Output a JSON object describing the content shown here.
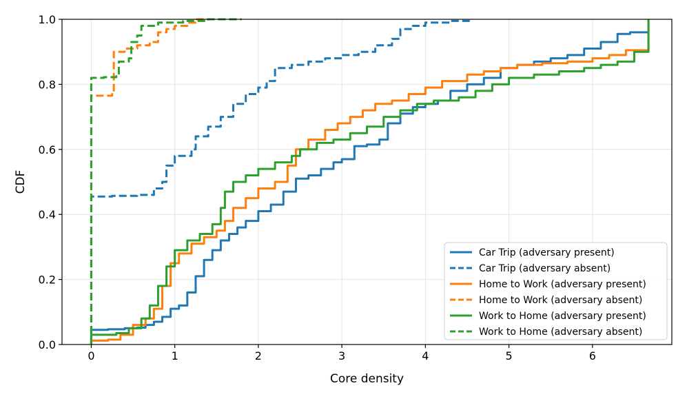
{
  "chart_data": {
    "type": "line",
    "title": "",
    "xlabel": "Core density",
    "ylabel": "CDF",
    "xlim": [
      -0.35,
      6.95
    ],
    "ylim": [
      0.0,
      1.0
    ],
    "xticks": [
      0,
      1,
      2,
      3,
      4,
      5,
      6
    ],
    "xtick_labels": [
      "0",
      "1",
      "2",
      "3",
      "4",
      "5",
      "6"
    ],
    "yticks": [
      0.0,
      0.2,
      0.4,
      0.6,
      0.8,
      1.0
    ],
    "ytick_labels": [
      "0.0",
      "0.2",
      "0.4",
      "0.6",
      "0.8",
      "1.0"
    ],
    "grid": true,
    "legend_position": "lower-right",
    "series": [
      {
        "name": "Car Trip (adversary present)",
        "color": "#1f77b4",
        "style": "solid",
        "points": [
          [
            0,
            0
          ],
          [
            0,
            0.045
          ],
          [
            0.2,
            0.047
          ],
          [
            0.4,
            0.05
          ],
          [
            0.55,
            0.052
          ],
          [
            0.65,
            0.06
          ],
          [
            0.75,
            0.07
          ],
          [
            0.85,
            0.085
          ],
          [
            0.95,
            0.11
          ],
          [
            1.05,
            0.12
          ],
          [
            1.15,
            0.16
          ],
          [
            1.25,
            0.21
          ],
          [
            1.35,
            0.26
          ],
          [
            1.45,
            0.29
          ],
          [
            1.55,
            0.32
          ],
          [
            1.65,
            0.34
          ],
          [
            1.75,
            0.36
          ],
          [
            1.85,
            0.38
          ],
          [
            2.0,
            0.41
          ],
          [
            2.15,
            0.43
          ],
          [
            2.3,
            0.47
          ],
          [
            2.45,
            0.51
          ],
          [
            2.6,
            0.52
          ],
          [
            2.75,
            0.54
          ],
          [
            2.9,
            0.56
          ],
          [
            3.0,
            0.57
          ],
          [
            3.15,
            0.61
          ],
          [
            3.3,
            0.615
          ],
          [
            3.45,
            0.63
          ],
          [
            3.55,
            0.68
          ],
          [
            3.7,
            0.71
          ],
          [
            3.85,
            0.73
          ],
          [
            4.0,
            0.74
          ],
          [
            4.15,
            0.75
          ],
          [
            4.3,
            0.78
          ],
          [
            4.5,
            0.8
          ],
          [
            4.7,
            0.82
          ],
          [
            4.9,
            0.85
          ],
          [
            5.1,
            0.86
          ],
          [
            5.3,
            0.87
          ],
          [
            5.5,
            0.88
          ],
          [
            5.7,
            0.89
          ],
          [
            5.9,
            0.91
          ],
          [
            6.1,
            0.93
          ],
          [
            6.3,
            0.955
          ],
          [
            6.45,
            0.96
          ],
          [
            6.67,
            0.962
          ],
          [
            6.67,
            1.0
          ]
        ]
      },
      {
        "name": "Car Trip (adversary absent)",
        "color": "#1f77b4",
        "style": "dashed",
        "points": [
          [
            0,
            0
          ],
          [
            0,
            0.455
          ],
          [
            0.25,
            0.457
          ],
          [
            0.55,
            0.46
          ],
          [
            0.75,
            0.48
          ],
          [
            0.85,
            0.5
          ],
          [
            0.9,
            0.55
          ],
          [
            1.0,
            0.58
          ],
          [
            1.2,
            0.6
          ],
          [
            1.25,
            0.64
          ],
          [
            1.4,
            0.67
          ],
          [
            1.55,
            0.7
          ],
          [
            1.7,
            0.74
          ],
          [
            1.85,
            0.77
          ],
          [
            2.0,
            0.79
          ],
          [
            2.1,
            0.81
          ],
          [
            2.2,
            0.85
          ],
          [
            2.4,
            0.86
          ],
          [
            2.6,
            0.87
          ],
          [
            2.8,
            0.88
          ],
          [
            3.0,
            0.89
          ],
          [
            3.2,
            0.9
          ],
          [
            3.4,
            0.92
          ],
          [
            3.6,
            0.94
          ],
          [
            3.7,
            0.97
          ],
          [
            3.85,
            0.98
          ],
          [
            4.0,
            0.99
          ],
          [
            4.3,
            0.995
          ],
          [
            4.55,
            1.0
          ]
        ]
      },
      {
        "name": "Home to Work (adversary present)",
        "color": "#ff7f0e",
        "style": "solid",
        "points": [
          [
            0,
            0
          ],
          [
            0,
            0.012
          ],
          [
            0.2,
            0.015
          ],
          [
            0.35,
            0.03
          ],
          [
            0.5,
            0.06
          ],
          [
            0.65,
            0.08
          ],
          [
            0.75,
            0.11
          ],
          [
            0.85,
            0.18
          ],
          [
            0.95,
            0.25
          ],
          [
            1.05,
            0.28
          ],
          [
            1.2,
            0.31
          ],
          [
            1.35,
            0.33
          ],
          [
            1.5,
            0.35
          ],
          [
            1.6,
            0.38
          ],
          [
            1.7,
            0.42
          ],
          [
            1.85,
            0.45
          ],
          [
            2.0,
            0.48
          ],
          [
            2.2,
            0.5
          ],
          [
            2.35,
            0.55
          ],
          [
            2.45,
            0.6
          ],
          [
            2.6,
            0.63
          ],
          [
            2.8,
            0.66
          ],
          [
            2.95,
            0.68
          ],
          [
            3.1,
            0.7
          ],
          [
            3.25,
            0.72
          ],
          [
            3.4,
            0.74
          ],
          [
            3.6,
            0.75
          ],
          [
            3.8,
            0.77
          ],
          [
            4.0,
            0.79
          ],
          [
            4.2,
            0.81
          ],
          [
            4.5,
            0.83
          ],
          [
            4.7,
            0.84
          ],
          [
            4.9,
            0.85
          ],
          [
            5.1,
            0.86
          ],
          [
            5.4,
            0.865
          ],
          [
            5.7,
            0.87
          ],
          [
            6.0,
            0.88
          ],
          [
            6.2,
            0.89
          ],
          [
            6.4,
            0.905
          ],
          [
            6.67,
            0.915
          ],
          [
            6.67,
            1.0
          ]
        ]
      },
      {
        "name": "Home to Work (adversary absent)",
        "color": "#ff7f0e",
        "style": "dashed",
        "points": [
          [
            0,
            0
          ],
          [
            0,
            0.765
          ],
          [
            0.25,
            0.77
          ],
          [
            0.27,
            0.9
          ],
          [
            0.4,
            0.91
          ],
          [
            0.55,
            0.92
          ],
          [
            0.7,
            0.93
          ],
          [
            0.8,
            0.96
          ],
          [
            0.9,
            0.97
          ],
          [
            1.0,
            0.98
          ],
          [
            1.15,
            0.99
          ],
          [
            1.25,
            1.0
          ],
          [
            1.6,
            1.0
          ]
        ]
      },
      {
        "name": "Work to Home (adversary present)",
        "color": "#2ca02c",
        "style": "solid",
        "points": [
          [
            0,
            0
          ],
          [
            0,
            0.03
          ],
          [
            0.3,
            0.035
          ],
          [
            0.45,
            0.05
          ],
          [
            0.6,
            0.08
          ],
          [
            0.7,
            0.12
          ],
          [
            0.8,
            0.18
          ],
          [
            0.9,
            0.24
          ],
          [
            1.0,
            0.29
          ],
          [
            1.15,
            0.32
          ],
          [
            1.3,
            0.34
          ],
          [
            1.45,
            0.37
          ],
          [
            1.55,
            0.42
          ],
          [
            1.6,
            0.47
          ],
          [
            1.7,
            0.5
          ],
          [
            1.85,
            0.52
          ],
          [
            2.0,
            0.54
          ],
          [
            2.2,
            0.56
          ],
          [
            2.4,
            0.58
          ],
          [
            2.5,
            0.6
          ],
          [
            2.7,
            0.62
          ],
          [
            2.9,
            0.63
          ],
          [
            3.1,
            0.65
          ],
          [
            3.3,
            0.67
          ],
          [
            3.5,
            0.7
          ],
          [
            3.7,
            0.72
          ],
          [
            3.9,
            0.74
          ],
          [
            4.1,
            0.75
          ],
          [
            4.4,
            0.76
          ],
          [
            4.6,
            0.78
          ],
          [
            4.8,
            0.8
          ],
          [
            5.0,
            0.82
          ],
          [
            5.3,
            0.83
          ],
          [
            5.6,
            0.84
          ],
          [
            5.9,
            0.85
          ],
          [
            6.1,
            0.86
          ],
          [
            6.3,
            0.87
          ],
          [
            6.5,
            0.9
          ],
          [
            6.67,
            0.905
          ],
          [
            6.67,
            1.0
          ]
        ]
      },
      {
        "name": "Work to Home (adversary absent)",
        "color": "#2ca02c",
        "style": "dashed",
        "points": [
          [
            0,
            0
          ],
          [
            0,
            0.82
          ],
          [
            0.15,
            0.822
          ],
          [
            0.3,
            0.825
          ],
          [
            0.33,
            0.87
          ],
          [
            0.45,
            0.88
          ],
          [
            0.48,
            0.93
          ],
          [
            0.55,
            0.95
          ],
          [
            0.6,
            0.98
          ],
          [
            0.8,
            0.99
          ],
          [
            1.1,
            0.995
          ],
          [
            1.4,
            1.0
          ],
          [
            1.8,
            1.0
          ]
        ]
      }
    ]
  }
}
